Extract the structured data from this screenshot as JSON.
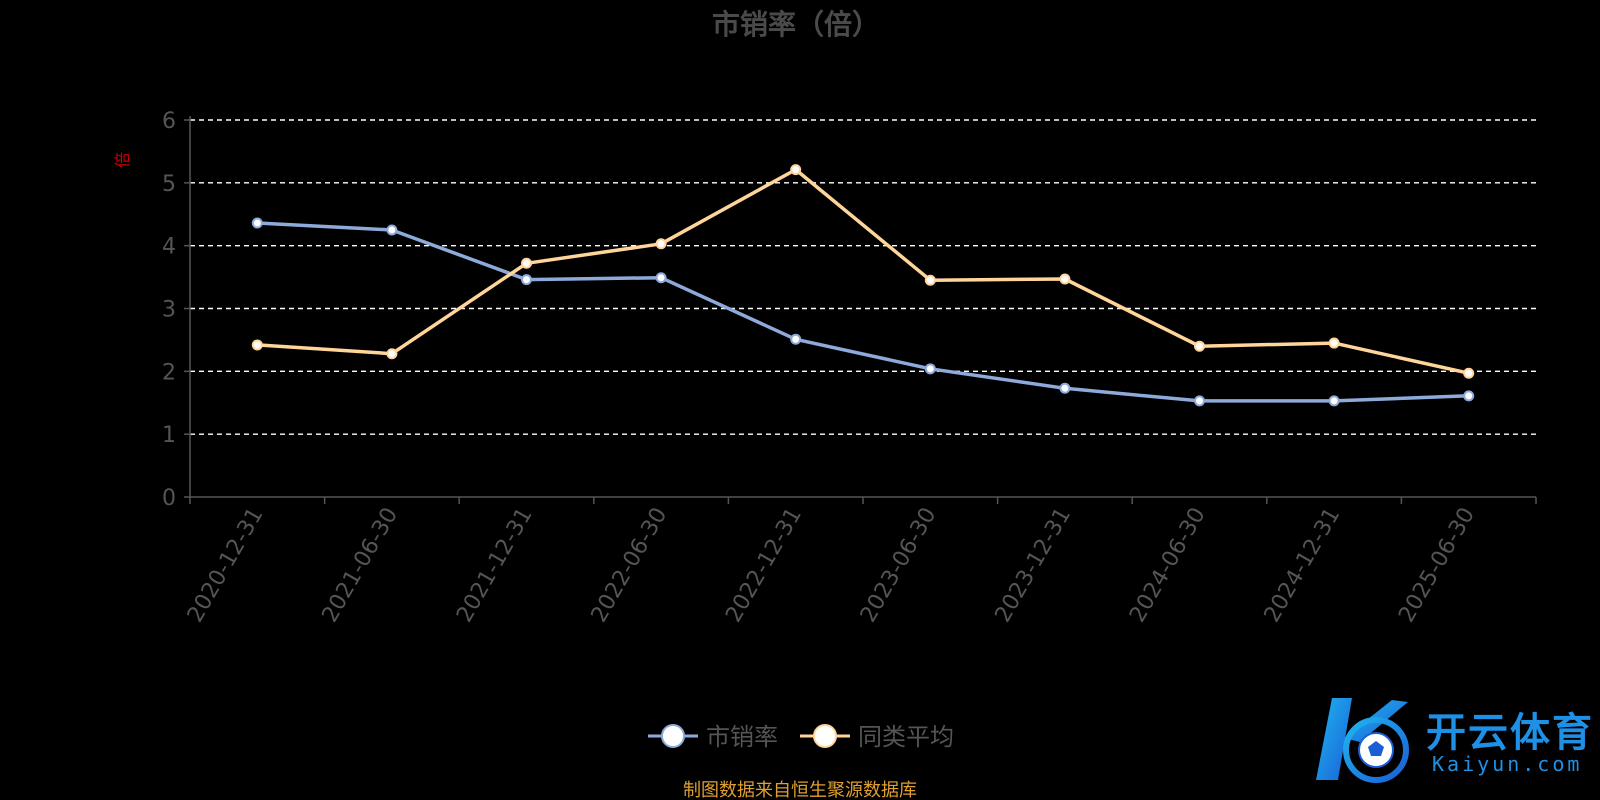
{
  "chart_data": {
    "type": "line",
    "title": "市销率（倍）",
    "ylabel": "倍",
    "xlabel": "",
    "ylim": [
      0,
      6
    ],
    "yticks": [
      0,
      1,
      2,
      3,
      4,
      5,
      6
    ],
    "grid": true,
    "legend_position": "bottom-center",
    "categories": [
      "2020-12-31",
      "2021-06-30",
      "2021-12-31",
      "2022-06-30",
      "2022-12-31",
      "2023-06-30",
      "2023-12-31",
      "2024-06-30",
      "2024-12-31",
      "2025-06-30"
    ],
    "series": [
      {
        "name": "市销率",
        "color": "#8eaadb",
        "values": [
          4.36,
          4.25,
          3.46,
          3.49,
          2.51,
          2.04,
          1.73,
          1.53,
          1.53,
          1.61
        ]
      },
      {
        "name": "同类平均",
        "color": "#ffd59a",
        "values": [
          2.42,
          2.28,
          3.72,
          4.03,
          5.21,
          3.45,
          3.47,
          2.4,
          2.45,
          1.97
        ]
      }
    ]
  },
  "colors": {
    "title": "#4a4a4a",
    "ylabel": "#cc0000",
    "axis_text": "#555555",
    "grid": "#ffffff",
    "source": "#e0a030",
    "watermark": "#1e90e6"
  },
  "source_note": "制图数据来自恒生聚源数据库",
  "watermark": {
    "brand": "开云体育",
    "sub": "Kaiyun.com",
    "icon": "football-logo-icon"
  }
}
